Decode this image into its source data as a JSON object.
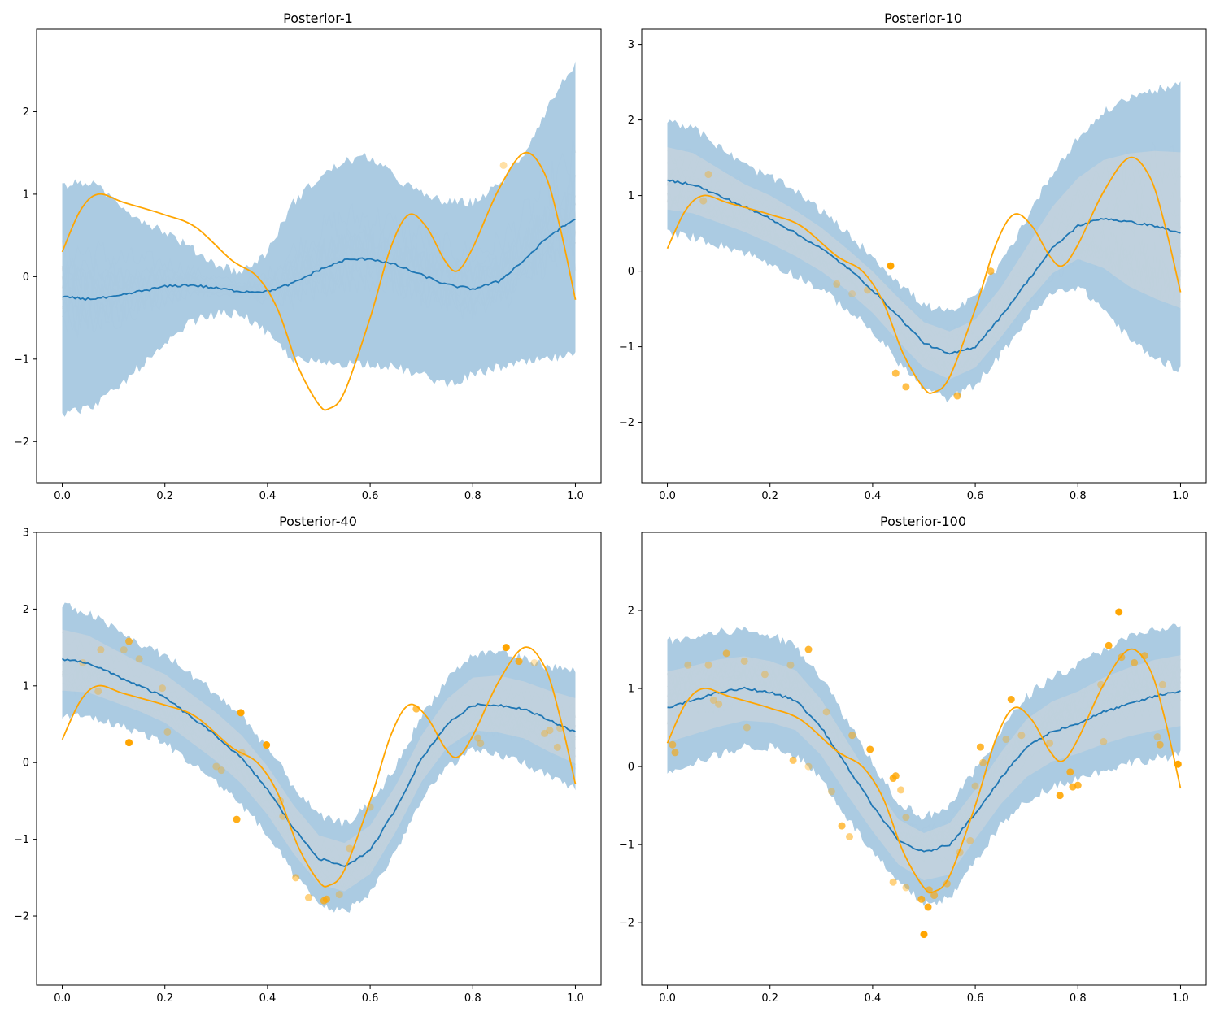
{
  "figure": {
    "background": "#ffffff"
  },
  "colors": {
    "band": "#a6c8e0",
    "mean": "#1f77b4",
    "truth": "#ffa500",
    "sample": "#e6e6e6",
    "obs": "#ffa500"
  },
  "chart_data": [
    {
      "type": "line",
      "title": "Posterior-1",
      "xlim": [
        -0.05,
        1.05
      ],
      "ylim": [
        -2.5,
        3.0
      ],
      "xticks": [
        "0.0",
        "0.2",
        "0.4",
        "0.6",
        "0.8",
        "1.0"
      ],
      "yticks": [
        "−2",
        "−1",
        "0",
        "1",
        "2"
      ],
      "n_obs": 1,
      "x": [
        0.0,
        0.05,
        0.1,
        0.15,
        0.2,
        0.25,
        0.3,
        0.35,
        0.4,
        0.45,
        0.5,
        0.55,
        0.6,
        0.65,
        0.7,
        0.75,
        0.8,
        0.85,
        0.9,
        0.95,
        1.0
      ],
      "series": [
        {
          "role": "mean",
          "values": [
            -0.25,
            -0.27,
            -0.25,
            -0.18,
            -0.12,
            -0.1,
            -0.14,
            -0.18,
            -0.18,
            -0.08,
            0.08,
            0.2,
            0.22,
            0.14,
            0.02,
            -0.1,
            -0.15,
            -0.06,
            0.2,
            0.5,
            0.7
          ]
        },
        {
          "role": "upper",
          "values": [
            1.1,
            1.15,
            0.95,
            0.7,
            0.55,
            0.35,
            0.15,
            0.05,
            0.3,
            0.9,
            1.2,
            1.4,
            1.45,
            1.2,
            1.0,
            0.9,
            0.9,
            1.1,
            1.5,
            2.1,
            2.6
          ]
        },
        {
          "role": "lower",
          "values": [
            -1.65,
            -1.6,
            -1.4,
            -1.1,
            -0.85,
            -0.55,
            -0.45,
            -0.45,
            -0.7,
            -1.0,
            -1.05,
            -1.05,
            -1.05,
            -1.1,
            -1.2,
            -1.3,
            -1.2,
            -1.1,
            -1.05,
            -1.0,
            -0.95
          ]
        }
      ],
      "observations": [
        {
          "x": 0.86,
          "y": 1.35,
          "alpha": 0.35
        }
      ]
    },
    {
      "type": "line",
      "title": "Posterior-10",
      "xlim": [
        -0.05,
        1.05
      ],
      "ylim": [
        -2.8,
        3.2
      ],
      "xticks": [
        "0.0",
        "0.2",
        "0.4",
        "0.6",
        "0.8",
        "1.0"
      ],
      "yticks": [
        "−2",
        "−1",
        "0",
        "1",
        "2",
        "3"
      ],
      "n_obs": 10,
      "x": [
        0.0,
        0.05,
        0.1,
        0.15,
        0.2,
        0.25,
        0.3,
        0.35,
        0.4,
        0.45,
        0.5,
        0.55,
        0.6,
        0.65,
        0.7,
        0.75,
        0.8,
        0.85,
        0.9,
        0.95,
        1.0
      ],
      "series": [
        {
          "role": "mean",
          "values": [
            1.2,
            1.15,
            1.0,
            0.85,
            0.7,
            0.5,
            0.3,
            0.05,
            -0.25,
            -0.6,
            -0.95,
            -1.1,
            -1.0,
            -0.6,
            -0.15,
            0.3,
            0.6,
            0.7,
            0.65,
            0.6,
            0.5
          ]
        },
        {
          "role": "upper",
          "values": [
            2.0,
            1.9,
            1.65,
            1.4,
            1.25,
            1.05,
            0.8,
            0.5,
            0.2,
            -0.15,
            -0.45,
            -0.55,
            -0.35,
            0.1,
            0.7,
            1.3,
            1.75,
            2.1,
            2.3,
            2.4,
            2.45
          ]
        },
        {
          "role": "lower",
          "values": [
            0.5,
            0.45,
            0.35,
            0.25,
            0.1,
            -0.05,
            -0.25,
            -0.5,
            -0.8,
            -1.2,
            -1.55,
            -1.7,
            -1.5,
            -1.1,
            -0.65,
            -0.3,
            -0.2,
            -0.5,
            -0.9,
            -1.15,
            -1.3
          ]
        }
      ],
      "observations": [
        {
          "x": 0.07,
          "y": 0.93,
          "alpha": 0.35
        },
        {
          "x": 0.08,
          "y": 1.28,
          "alpha": 0.35
        },
        {
          "x": 0.33,
          "y": -0.17,
          "alpha": 0.35
        },
        {
          "x": 0.39,
          "y": -0.25,
          "alpha": 0.35
        },
        {
          "x": 0.435,
          "y": 0.07,
          "alpha": 1.0
        },
        {
          "x": 0.445,
          "y": -1.35,
          "alpha": 0.7
        },
        {
          "x": 0.465,
          "y": -1.53,
          "alpha": 0.7
        },
        {
          "x": 0.565,
          "y": -1.65,
          "alpha": 0.7
        },
        {
          "x": 0.63,
          "y": 0.0,
          "alpha": 0.7
        },
        {
          "x": 0.36,
          "y": -0.3,
          "alpha": 0.25
        }
      ]
    },
    {
      "type": "line",
      "title": "Posterior-40",
      "xlim": [
        -0.05,
        1.05
      ],
      "ylim": [
        -2.9,
        3.0
      ],
      "xticks": [
        "0.0",
        "0.2",
        "0.4",
        "0.6",
        "0.8",
        "1.0"
      ],
      "yticks": [
        "−2",
        "−1",
        "0",
        "1",
        "2",
        "3"
      ],
      "n_obs": 40,
      "x": [
        0.0,
        0.05,
        0.1,
        0.15,
        0.2,
        0.25,
        0.3,
        0.35,
        0.4,
        0.45,
        0.5,
        0.55,
        0.6,
        0.65,
        0.7,
        0.75,
        0.8,
        0.85,
        0.9,
        0.95,
        1.0
      ],
      "series": [
        {
          "role": "mean",
          "values": [
            1.35,
            1.3,
            1.15,
            1.0,
            0.85,
            0.6,
            0.35,
            0.05,
            -0.35,
            -0.85,
            -1.25,
            -1.35,
            -1.15,
            -0.6,
            0.05,
            0.5,
            0.75,
            0.75,
            0.7,
            0.55,
            0.4
          ]
        },
        {
          "role": "upper",
          "values": [
            2.05,
            1.95,
            1.75,
            1.55,
            1.4,
            1.15,
            0.9,
            0.6,
            0.2,
            -0.3,
            -0.7,
            -0.8,
            -0.55,
            -0.05,
            0.6,
            1.1,
            1.4,
            1.45,
            1.35,
            1.25,
            1.2
          ]
        },
        {
          "role": "lower",
          "values": [
            0.6,
            0.6,
            0.5,
            0.4,
            0.25,
            0.0,
            -0.25,
            -0.55,
            -0.95,
            -1.45,
            -1.85,
            -1.95,
            -1.7,
            -1.15,
            -0.5,
            -0.05,
            0.15,
            0.1,
            0.0,
            -0.2,
            -0.35
          ]
        }
      ],
      "observations": [
        {
          "x": 0.04,
          "y": 1.3,
          "alpha": 0.3
        },
        {
          "x": 0.07,
          "y": 0.93,
          "alpha": 0.35
        },
        {
          "x": 0.075,
          "y": 1.47,
          "alpha": 0.35
        },
        {
          "x": 0.12,
          "y": 1.47,
          "alpha": 0.35
        },
        {
          "x": 0.13,
          "y": 1.58,
          "alpha": 0.7
        },
        {
          "x": 0.13,
          "y": 0.26,
          "alpha": 1.0
        },
        {
          "x": 0.15,
          "y": 1.35,
          "alpha": 0.35
        },
        {
          "x": 0.195,
          "y": 0.97,
          "alpha": 0.35
        },
        {
          "x": 0.205,
          "y": 0.4,
          "alpha": 0.35
        },
        {
          "x": 0.3,
          "y": -0.05,
          "alpha": 0.35
        },
        {
          "x": 0.31,
          "y": -0.1,
          "alpha": 0.35
        },
        {
          "x": 0.34,
          "y": -0.74,
          "alpha": 0.9
        },
        {
          "x": 0.348,
          "y": 0.65,
          "alpha": 1.0
        },
        {
          "x": 0.35,
          "y": 0.13,
          "alpha": 0.35
        },
        {
          "x": 0.398,
          "y": 0.23,
          "alpha": 1.0
        },
        {
          "x": 0.425,
          "y": -0.5,
          "alpha": 0.35
        },
        {
          "x": 0.43,
          "y": -0.7,
          "alpha": 0.35
        },
        {
          "x": 0.455,
          "y": -1.5,
          "alpha": 0.5
        },
        {
          "x": 0.48,
          "y": -1.76,
          "alpha": 0.5
        },
        {
          "x": 0.51,
          "y": -1.8,
          "alpha": 0.7
        },
        {
          "x": 0.515,
          "y": -1.78,
          "alpha": 0.7
        },
        {
          "x": 0.54,
          "y": -1.72,
          "alpha": 0.35
        },
        {
          "x": 0.56,
          "y": -1.12,
          "alpha": 0.35
        },
        {
          "x": 0.6,
          "y": -0.58,
          "alpha": 0.35
        },
        {
          "x": 0.69,
          "y": 0.7,
          "alpha": 0.7
        },
        {
          "x": 0.81,
          "y": 0.32,
          "alpha": 0.35
        },
        {
          "x": 0.815,
          "y": 0.25,
          "alpha": 0.35
        },
        {
          "x": 0.865,
          "y": 1.5,
          "alpha": 1.0
        },
        {
          "x": 0.89,
          "y": 1.32,
          "alpha": 0.8
        },
        {
          "x": 0.92,
          "y": 1.3,
          "alpha": 0.3
        },
        {
          "x": 0.94,
          "y": 0.38,
          "alpha": 0.35
        },
        {
          "x": 0.95,
          "y": 0.42,
          "alpha": 0.35
        },
        {
          "x": 0.965,
          "y": 0.2,
          "alpha": 0.35
        },
        {
          "x": 0.97,
          "y": 0.45,
          "alpha": 0.3
        }
      ]
    },
    {
      "type": "line",
      "title": "Posterior-100",
      "xlim": [
        -0.05,
        1.05
      ],
      "ylim": [
        -2.8,
        3.0
      ],
      "xticks": [
        "0.0",
        "0.2",
        "0.4",
        "0.6",
        "0.8",
        "1.0"
      ],
      "yticks": [
        "−2",
        "−1",
        "0",
        "1",
        "2"
      ],
      "n_obs": 100,
      "x": [
        0.0,
        0.05,
        0.1,
        0.15,
        0.2,
        0.25,
        0.3,
        0.35,
        0.4,
        0.45,
        0.5,
        0.55,
        0.6,
        0.65,
        0.7,
        0.75,
        0.8,
        0.85,
        0.9,
        0.95,
        1.0
      ],
      "series": [
        {
          "role": "mean",
          "values": [
            0.75,
            0.85,
            0.95,
            1.0,
            0.95,
            0.85,
            0.5,
            0.0,
            -0.5,
            -0.95,
            -1.1,
            -1.0,
            -0.6,
            -0.15,
            0.25,
            0.45,
            0.55,
            0.7,
            0.8,
            0.9,
            0.97
          ]
        },
        {
          "role": "upper",
          "values": [
            1.6,
            1.65,
            1.72,
            1.75,
            1.68,
            1.55,
            1.15,
            0.6,
            0.05,
            -0.45,
            -0.65,
            -0.5,
            -0.05,
            0.45,
            0.9,
            1.15,
            1.3,
            1.5,
            1.65,
            1.75,
            1.8
          ]
        },
        {
          "role": "lower",
          "values": [
            -0.05,
            0.05,
            0.15,
            0.25,
            0.25,
            0.15,
            -0.15,
            -0.65,
            -1.1,
            -1.5,
            -1.75,
            -1.7,
            -1.2,
            -0.75,
            -0.45,
            -0.25,
            -0.15,
            -0.05,
            0.05,
            0.1,
            0.15
          ]
        }
      ],
      "observations": [
        {
          "x": 0.01,
          "y": 0.28,
          "alpha": 0.6
        },
        {
          "x": 0.015,
          "y": 0.18,
          "alpha": 0.6
        },
        {
          "x": 0.04,
          "y": 1.3,
          "alpha": 0.35
        },
        {
          "x": 0.08,
          "y": 1.3,
          "alpha": 0.35
        },
        {
          "x": 0.09,
          "y": 0.85,
          "alpha": 0.35
        },
        {
          "x": 0.1,
          "y": 0.8,
          "alpha": 0.35
        },
        {
          "x": 0.115,
          "y": 1.45,
          "alpha": 0.6
        },
        {
          "x": 0.15,
          "y": 1.35,
          "alpha": 0.35
        },
        {
          "x": 0.155,
          "y": 0.5,
          "alpha": 0.35
        },
        {
          "x": 0.19,
          "y": 1.18,
          "alpha": 0.35
        },
        {
          "x": 0.24,
          "y": 1.3,
          "alpha": 0.35
        },
        {
          "x": 0.245,
          "y": 0.08,
          "alpha": 0.6
        },
        {
          "x": 0.275,
          "y": 1.5,
          "alpha": 0.8
        },
        {
          "x": 0.275,
          "y": 0.0,
          "alpha": 0.35
        },
        {
          "x": 0.31,
          "y": 0.7,
          "alpha": 0.35
        },
        {
          "x": 0.32,
          "y": -0.32,
          "alpha": 0.35
        },
        {
          "x": 0.34,
          "y": -0.76,
          "alpha": 0.7
        },
        {
          "x": 0.355,
          "y": -0.9,
          "alpha": 0.5
        },
        {
          "x": 0.36,
          "y": 0.4,
          "alpha": 0.5
        },
        {
          "x": 0.395,
          "y": 0.22,
          "alpha": 0.9
        },
        {
          "x": 0.44,
          "y": -0.15,
          "alpha": 0.8
        },
        {
          "x": 0.445,
          "y": -0.12,
          "alpha": 0.8
        },
        {
          "x": 0.44,
          "y": -1.48,
          "alpha": 0.5
        },
        {
          "x": 0.455,
          "y": -0.3,
          "alpha": 0.5
        },
        {
          "x": 0.465,
          "y": -0.65,
          "alpha": 0.35
        },
        {
          "x": 0.465,
          "y": -1.55,
          "alpha": 0.4
        },
        {
          "x": 0.495,
          "y": -1.7,
          "alpha": 0.8
        },
        {
          "x": 0.5,
          "y": -2.15,
          "alpha": 1.0
        },
        {
          "x": 0.508,
          "y": -1.8,
          "alpha": 0.9
        },
        {
          "x": 0.51,
          "y": -1.58,
          "alpha": 0.6
        },
        {
          "x": 0.52,
          "y": -1.65,
          "alpha": 0.6
        },
        {
          "x": 0.545,
          "y": -1.5,
          "alpha": 0.5
        },
        {
          "x": 0.57,
          "y": -1.1,
          "alpha": 0.35
        },
        {
          "x": 0.59,
          "y": -0.95,
          "alpha": 0.35
        },
        {
          "x": 0.6,
          "y": -0.25,
          "alpha": 0.35
        },
        {
          "x": 0.61,
          "y": 0.25,
          "alpha": 0.8
        },
        {
          "x": 0.615,
          "y": 0.05,
          "alpha": 0.5
        },
        {
          "x": 0.66,
          "y": 0.35,
          "alpha": 0.35
        },
        {
          "x": 0.67,
          "y": 0.86,
          "alpha": 0.9
        },
        {
          "x": 0.69,
          "y": 0.4,
          "alpha": 0.35
        },
        {
          "x": 0.745,
          "y": 0.3,
          "alpha": 0.35
        },
        {
          "x": 0.765,
          "y": -0.37,
          "alpha": 0.9
        },
        {
          "x": 0.785,
          "y": -0.07,
          "alpha": 0.8
        },
        {
          "x": 0.79,
          "y": -0.26,
          "alpha": 0.8
        },
        {
          "x": 0.8,
          "y": -0.24,
          "alpha": 0.8
        },
        {
          "x": 0.845,
          "y": 1.05,
          "alpha": 0.35
        },
        {
          "x": 0.85,
          "y": 0.32,
          "alpha": 0.35
        },
        {
          "x": 0.86,
          "y": 1.55,
          "alpha": 0.9
        },
        {
          "x": 0.88,
          "y": 1.98,
          "alpha": 1.0
        },
        {
          "x": 0.885,
          "y": 1.4,
          "alpha": 0.6
        },
        {
          "x": 0.91,
          "y": 1.33,
          "alpha": 0.6
        },
        {
          "x": 0.93,
          "y": 1.42,
          "alpha": 0.6
        },
        {
          "x": 0.955,
          "y": 0.38,
          "alpha": 0.35
        },
        {
          "x": 0.96,
          "y": 0.28,
          "alpha": 0.6
        },
        {
          "x": 0.965,
          "y": 1.05,
          "alpha": 0.35
        },
        {
          "x": 0.995,
          "y": 0.03,
          "alpha": 1.0
        }
      ]
    }
  ]
}
